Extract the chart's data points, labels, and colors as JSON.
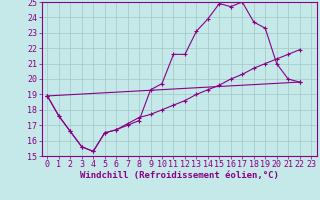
{
  "xlabel": "Windchill (Refroidissement éolien,°C)",
  "xlim": [
    -0.5,
    23.5
  ],
  "ylim": [
    15,
    25
  ],
  "yticks": [
    15,
    16,
    17,
    18,
    19,
    20,
    21,
    22,
    23,
    24,
    25
  ],
  "xticks": [
    0,
    1,
    2,
    3,
    4,
    5,
    6,
    7,
    8,
    9,
    10,
    11,
    12,
    13,
    14,
    15,
    16,
    17,
    18,
    19,
    20,
    21,
    22,
    23
  ],
  "bg_color": "#c5e8e8",
  "grid_color": "#a0c8c8",
  "line_color": "#880088",
  "series1_x": [
    0,
    1,
    2,
    3,
    4,
    5,
    6,
    7,
    8,
    9,
    10,
    11,
    12,
    13,
    14,
    15,
    16,
    17,
    18,
    19,
    20,
    21,
    22
  ],
  "series1_y": [
    18.9,
    17.6,
    16.6,
    15.6,
    15.3,
    16.5,
    16.7,
    17.0,
    17.3,
    19.3,
    19.7,
    21.6,
    21.6,
    23.1,
    23.9,
    24.9,
    24.7,
    25.0,
    23.7,
    23.3,
    21.0,
    20.0,
    19.8
  ],
  "series2_x": [
    0,
    1,
    2,
    3,
    4,
    5,
    6,
    7,
    8,
    9,
    10,
    11,
    12,
    13,
    14,
    15,
    16,
    17,
    18,
    19,
    20,
    21,
    22
  ],
  "series2_y": [
    18.9,
    17.6,
    16.6,
    15.6,
    15.3,
    16.5,
    16.7,
    17.1,
    17.5,
    17.7,
    18.0,
    18.3,
    18.6,
    19.0,
    19.3,
    19.6,
    20.0,
    20.3,
    20.7,
    21.0,
    21.3,
    21.6,
    21.9
  ],
  "series3_x": [
    0,
    22
  ],
  "series3_y": [
    18.9,
    19.8
  ],
  "font_size_tick": 6,
  "font_size_label": 6.5,
  "marker_size": 2.5,
  "line_width": 0.8
}
